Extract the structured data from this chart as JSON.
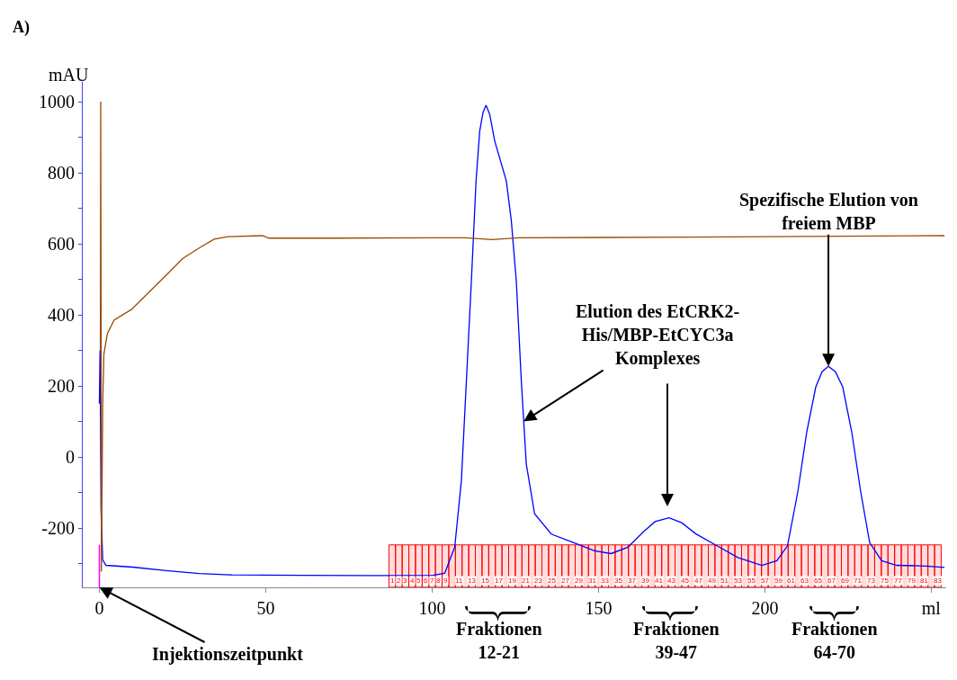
{
  "chart_data": {
    "type": "line",
    "ylabel": "mAU",
    "annotations": [
      "A)",
      {
        "text": "Elution des EtCRK2-\nHis/MBP-EtCYC3a\nKomplexes",
        "x": 127.5,
        "y": 100
      },
      {
        "text": "Spezifische Elution von\nfreiem MBP",
        "x": 219.1,
        "y": 255
      },
      {
        "text": "Injektionszeitpunkt",
        "x": 0,
        "y": -367
      },
      "Fraktionen\n12-21",
      "Fraktionen\n39-47",
      "Fraktionen\n64-70"
    ],
    "series": [
      {
        "color": "#0000ff",
        "x": [
          0,
          0.2,
          0.5,
          1,
          2,
          10,
          20,
          30,
          40,
          60,
          80,
          100,
          103.8,
          106.8,
          108.8,
          110.3,
          111.8,
          113.2,
          114.3,
          115.3,
          116.2,
          117.3,
          118.8,
          122.3,
          123.8,
          125.3,
          126.8,
          128.3,
          130.8,
          135.8,
          143.8,
          148.8,
          153.8,
          158.8,
          163.8,
          167,
          171.2,
          175,
          179.2,
          185.6,
          191.9,
          199.1,
          203.6,
          206.8,
          209.9,
          212.6,
          215.3,
          217.2,
          219.1,
          221.2,
          223.4,
          226.1,
          228.8,
          231.5,
          235.1,
          239.6,
          248.6,
          254
        ],
        "values": [
          150,
          300,
          -150,
          -290,
          -305,
          -310,
          -320,
          -328,
          -332,
          -333,
          -334,
          -334,
          -327,
          -253,
          -66,
          215,
          496,
          777,
          917,
          970,
          990,
          965,
          890,
          777,
          665,
          496,
          215,
          -20,
          -160,
          -217,
          -246,
          -264,
          -272,
          -254,
          -208,
          -182,
          -171,
          -185,
          -216,
          -250,
          -283,
          -305,
          -292,
          -250,
          -98,
          71,
          197,
          240,
          255,
          240,
          197,
          71,
          -98,
          -241,
          -292,
          -305,
          -307,
          -311
        ]
      },
      {
        "color": "#9c4a00",
        "x": [
          0.3,
          0.4,
          0.5,
          0.6,
          1.0,
          1.35,
          2.4,
          4.4,
          9.6,
          14.8,
          20,
          25.1,
          30.3,
          34.5,
          38.6,
          49,
          51,
          70,
          100,
          110,
          118,
          126,
          150,
          200,
          254
        ],
        "values": [
          300,
          1000,
          400,
          -323,
          150,
          289,
          347,
          385,
          415,
          463,
          511,
          559,
          590,
          613,
          620,
          623,
          616,
          616,
          617,
          617,
          612,
          617,
          618,
          620,
          623
        ]
      }
    ],
    "xlim": [
      -5,
      254.5
    ],
    "xticks": [
      0,
      50,
      100,
      150,
      200,
      {
        "value": 250,
        "label": "ml"
      }
    ],
    "ylim": [
      -367,
      1056
    ],
    "yticks": [
      {
        "value": -300,
        "label": null
      },
      -200,
      {
        "value": -100,
        "label": null
      },
      0,
      {
        "value": 100,
        "label": null
      },
      200,
      {
        "value": 300,
        "label": null
      },
      400,
      {
        "value": 500,
        "label": null
      },
      600,
      {
        "value": 700,
        "label": null
      },
      800,
      {
        "value": 900,
        "label": null
      },
      1000
    ],
    "grid": false,
    "marker": "none",
    "line_style": "solid",
    "ref_lines": [
      {
        "axis": "x",
        "value": 0,
        "color": "#ff00ff"
      }
    ],
    "bands": [
      {
        "axis": "x",
        "from": 87,
        "to": 89,
        "label": "1",
        "color": "#ff0000"
      },
      {
        "axis": "x",
        "from": 89,
        "to": 91,
        "label": "2",
        "color": "#ff0000"
      },
      {
        "axis": "x",
        "from": 91,
        "to": 93,
        "label": "3",
        "color": "#ff0000"
      },
      {
        "axis": "x",
        "from": 93,
        "to": 95,
        "label": "4",
        "color": "#ff0000"
      },
      {
        "axis": "x",
        "from": 95,
        "to": 97,
        "label": "5",
        "color": "#ff0000"
      },
      {
        "axis": "x",
        "from": 97,
        "to": 99,
        "label": "6",
        "color": "#ff0000"
      },
      {
        "axis": "x",
        "from": 99,
        "to": 101,
        "label": "7",
        "color": "#ff0000"
      },
      {
        "axis": "x",
        "from": 101,
        "to": 103,
        "label": "8",
        "color": "#ff0000"
      },
      {
        "axis": "x",
        "from": 103,
        "to": 105,
        "label": "9",
        "color": "#ff0000"
      },
      {
        "axis": "x",
        "from": 105,
        "to": 107,
        "label": null,
        "color": "#ff0000"
      },
      {
        "axis": "x",
        "from": 107,
        "to": 109,
        "label": "11",
        "color": "#ff0000"
      },
      {
        "axis": "x",
        "from": 109,
        "to": 111,
        "label": null,
        "color": "#ff0000"
      },
      {
        "axis": "x",
        "from": 111,
        "to": 113,
        "label": "13",
        "color": "#ff0000"
      },
      {
        "axis": "x",
        "from": 113,
        "to": 115,
        "label": null,
        "color": "#ff0000"
      },
      {
        "axis": "x",
        "from": 115,
        "to": 117,
        "label": "15",
        "color": "#ff0000"
      },
      {
        "axis": "x",
        "from": 117,
        "to": 119,
        "label": null,
        "color": "#ff0000"
      },
      {
        "axis": "x",
        "from": 119,
        "to": 121,
        "label": "17",
        "color": "#ff0000"
      },
      {
        "axis": "x",
        "from": 121,
        "to": 123,
        "label": null,
        "color": "#ff0000"
      },
      {
        "axis": "x",
        "from": 123,
        "to": 125,
        "label": "19",
        "color": "#ff0000"
      },
      {
        "axis": "x",
        "from": 125,
        "to": 127,
        "label": null,
        "color": "#ff0000"
      },
      {
        "axis": "x",
        "from": 127,
        "to": 129,
        "label": "21",
        "color": "#ff0000"
      },
      {
        "axis": "x",
        "from": 129,
        "to": 131,
        "label": null,
        "color": "#ff0000"
      },
      {
        "axis": "x",
        "from": 131,
        "to": 133,
        "label": "23",
        "color": "#ff0000"
      },
      {
        "axis": "x",
        "from": 133,
        "to": 135,
        "label": null,
        "color": "#ff0000"
      },
      {
        "axis": "x",
        "from": 135,
        "to": 137,
        "label": "25",
        "color": "#ff0000"
      },
      {
        "axis": "x",
        "from": 137,
        "to": 139,
        "label": null,
        "color": "#ff0000"
      },
      {
        "axis": "x",
        "from": 139,
        "to": 141,
        "label": "27",
        "color": "#ff0000"
      },
      {
        "axis": "x",
        "from": 141,
        "to": 143,
        "label": null,
        "color": "#ff0000"
      },
      {
        "axis": "x",
        "from": 143,
        "to": 145,
        "label": "29",
        "color": "#ff0000"
      },
      {
        "axis": "x",
        "from": 145,
        "to": 147,
        "label": null,
        "color": "#ff0000"
      },
      {
        "axis": "x",
        "from": 147,
        "to": 149,
        "label": "31",
        "color": "#ff0000"
      },
      {
        "axis": "x",
        "from": 149,
        "to": 151,
        "label": null,
        "color": "#ff0000"
      },
      {
        "axis": "x",
        "from": 151,
        "to": 153,
        "label": "33",
        "color": "#ff0000"
      },
      {
        "axis": "x",
        "from": 153,
        "to": 155,
        "label": null,
        "color": "#ff0000"
      },
      {
        "axis": "x",
        "from": 155,
        "to": 157,
        "label": "35",
        "color": "#ff0000"
      },
      {
        "axis": "x",
        "from": 157,
        "to": 159,
        "label": null,
        "color": "#ff0000"
      },
      {
        "axis": "x",
        "from": 159,
        "to": 161,
        "label": "37",
        "color": "#ff0000"
      },
      {
        "axis": "x",
        "from": 161,
        "to": 163,
        "label": null,
        "color": "#ff0000"
      },
      {
        "axis": "x",
        "from": 163,
        "to": 165,
        "label": "39",
        "color": "#ff0000"
      },
      {
        "axis": "x",
        "from": 165,
        "to": 167,
        "label": null,
        "color": "#ff0000"
      },
      {
        "axis": "x",
        "from": 167,
        "to": 169,
        "label": "41",
        "color": "#ff0000"
      },
      {
        "axis": "x",
        "from": 169,
        "to": 171,
        "label": null,
        "color": "#ff0000"
      },
      {
        "axis": "x",
        "from": 171,
        "to": 173,
        "label": "43",
        "color": "#ff0000"
      },
      {
        "axis": "x",
        "from": 173,
        "to": 175,
        "label": null,
        "color": "#ff0000"
      },
      {
        "axis": "x",
        "from": 175,
        "to": 177,
        "label": "45",
        "color": "#ff0000"
      },
      {
        "axis": "x",
        "from": 177,
        "to": 179,
        "label": null,
        "color": "#ff0000"
      },
      {
        "axis": "x",
        "from": 179,
        "to": 181,
        "label": "47",
        "color": "#ff0000"
      },
      {
        "axis": "x",
        "from": 181,
        "to": 183,
        "label": null,
        "color": "#ff0000"
      },
      {
        "axis": "x",
        "from": 183,
        "to": 185,
        "label": "49",
        "color": "#ff0000"
      },
      {
        "axis": "x",
        "from": 185,
        "to": 187,
        "label": null,
        "color": "#ff0000"
      },
      {
        "axis": "x",
        "from": 187,
        "to": 189,
        "label": "51",
        "color": "#ff0000"
      },
      {
        "axis": "x",
        "from": 189,
        "to": 191,
        "label": null,
        "color": "#ff0000"
      },
      {
        "axis": "x",
        "from": 191,
        "to": 193,
        "label": "53",
        "color": "#ff0000"
      },
      {
        "axis": "x",
        "from": 193,
        "to": 195,
        "label": null,
        "color": "#ff0000"
      },
      {
        "axis": "x",
        "from": 195,
        "to": 197,
        "label": "55",
        "color": "#ff0000"
      },
      {
        "axis": "x",
        "from": 197,
        "to": 199,
        "label": null,
        "color": "#ff0000"
      },
      {
        "axis": "x",
        "from": 199,
        "to": 201,
        "label": "57",
        "color": "#ff0000"
      },
      {
        "axis": "x",
        "from": 201,
        "to": 203,
        "label": null,
        "color": "#ff0000"
      },
      {
        "axis": "x",
        "from": 203,
        "to": 205,
        "label": "59",
        "color": "#ff0000"
      },
      {
        "axis": "x",
        "from": 205,
        "to": 207,
        "label": null,
        "color": "#ff0000"
      },
      {
        "axis": "x",
        "from": 207,
        "to": 209,
        "label": "61",
        "color": "#ff0000"
      },
      {
        "axis": "x",
        "from": 209,
        "to": 211,
        "label": null,
        "color": "#ff0000"
      },
      {
        "axis": "x",
        "from": 211,
        "to": 213,
        "label": "63",
        "color": "#ff0000"
      },
      {
        "axis": "x",
        "from": 213,
        "to": 215,
        "label": null,
        "color": "#ff0000"
      },
      {
        "axis": "x",
        "from": 215,
        "to": 217,
        "label": "65",
        "color": "#ff0000"
      },
      {
        "axis": "x",
        "from": 217,
        "to": 219,
        "label": null,
        "color": "#ff0000"
      },
      {
        "axis": "x",
        "from": 219,
        "to": 221,
        "label": "67",
        "color": "#ff0000"
      },
      {
        "axis": "x",
        "from": 221,
        "to": 223,
        "label": null,
        "color": "#ff0000"
      },
      {
        "axis": "x",
        "from": 223,
        "to": 225,
        "label": "69",
        "color": "#ff0000"
      },
      {
        "axis": "x",
        "from": 225,
        "to": 227,
        "label": null,
        "color": "#ff0000"
      },
      {
        "axis": "x",
        "from": 227,
        "to": 229,
        "label": "71",
        "color": "#ff0000"
      },
      {
        "axis": "x",
        "from": 229,
        "to": 231,
        "label": null,
        "color": "#ff0000"
      },
      {
        "axis": "x",
        "from": 231,
        "to": 233,
        "label": "73",
        "color": "#ff0000"
      },
      {
        "axis": "x",
        "from": 233,
        "to": 235,
        "label": null,
        "color": "#ff0000"
      },
      {
        "axis": "x",
        "from": 235,
        "to": 237,
        "label": "75",
        "color": "#ff0000"
      },
      {
        "axis": "x",
        "from": 237,
        "to": 239,
        "label": null,
        "color": "#ff0000"
      },
      {
        "axis": "x",
        "from": 239,
        "to": 241,
        "label": "77",
        "color": "#ff0000"
      },
      {
        "axis": "x",
        "from": 241,
        "to": 243,
        "label": null,
        "color": "#ff0000"
      },
      {
        "axis": "x",
        "from": 243,
        "to": 245,
        "label": "79",
        "color": "#ff0000"
      },
      {
        "axis": "x",
        "from": 245,
        "to": 247,
        "label": null,
        "color": "#ff0000"
      },
      {
        "axis": "x",
        "from": 247,
        "to": 249,
        "label": "81",
        "color": "#ff0000"
      },
      {
        "axis": "x",
        "from": 249,
        "to": 251,
        "label": null,
        "color": "#ff0000"
      },
      {
        "axis": "x",
        "from": 251,
        "to": 253,
        "label": "83",
        "color": "#ff0000"
      }
    ]
  }
}
